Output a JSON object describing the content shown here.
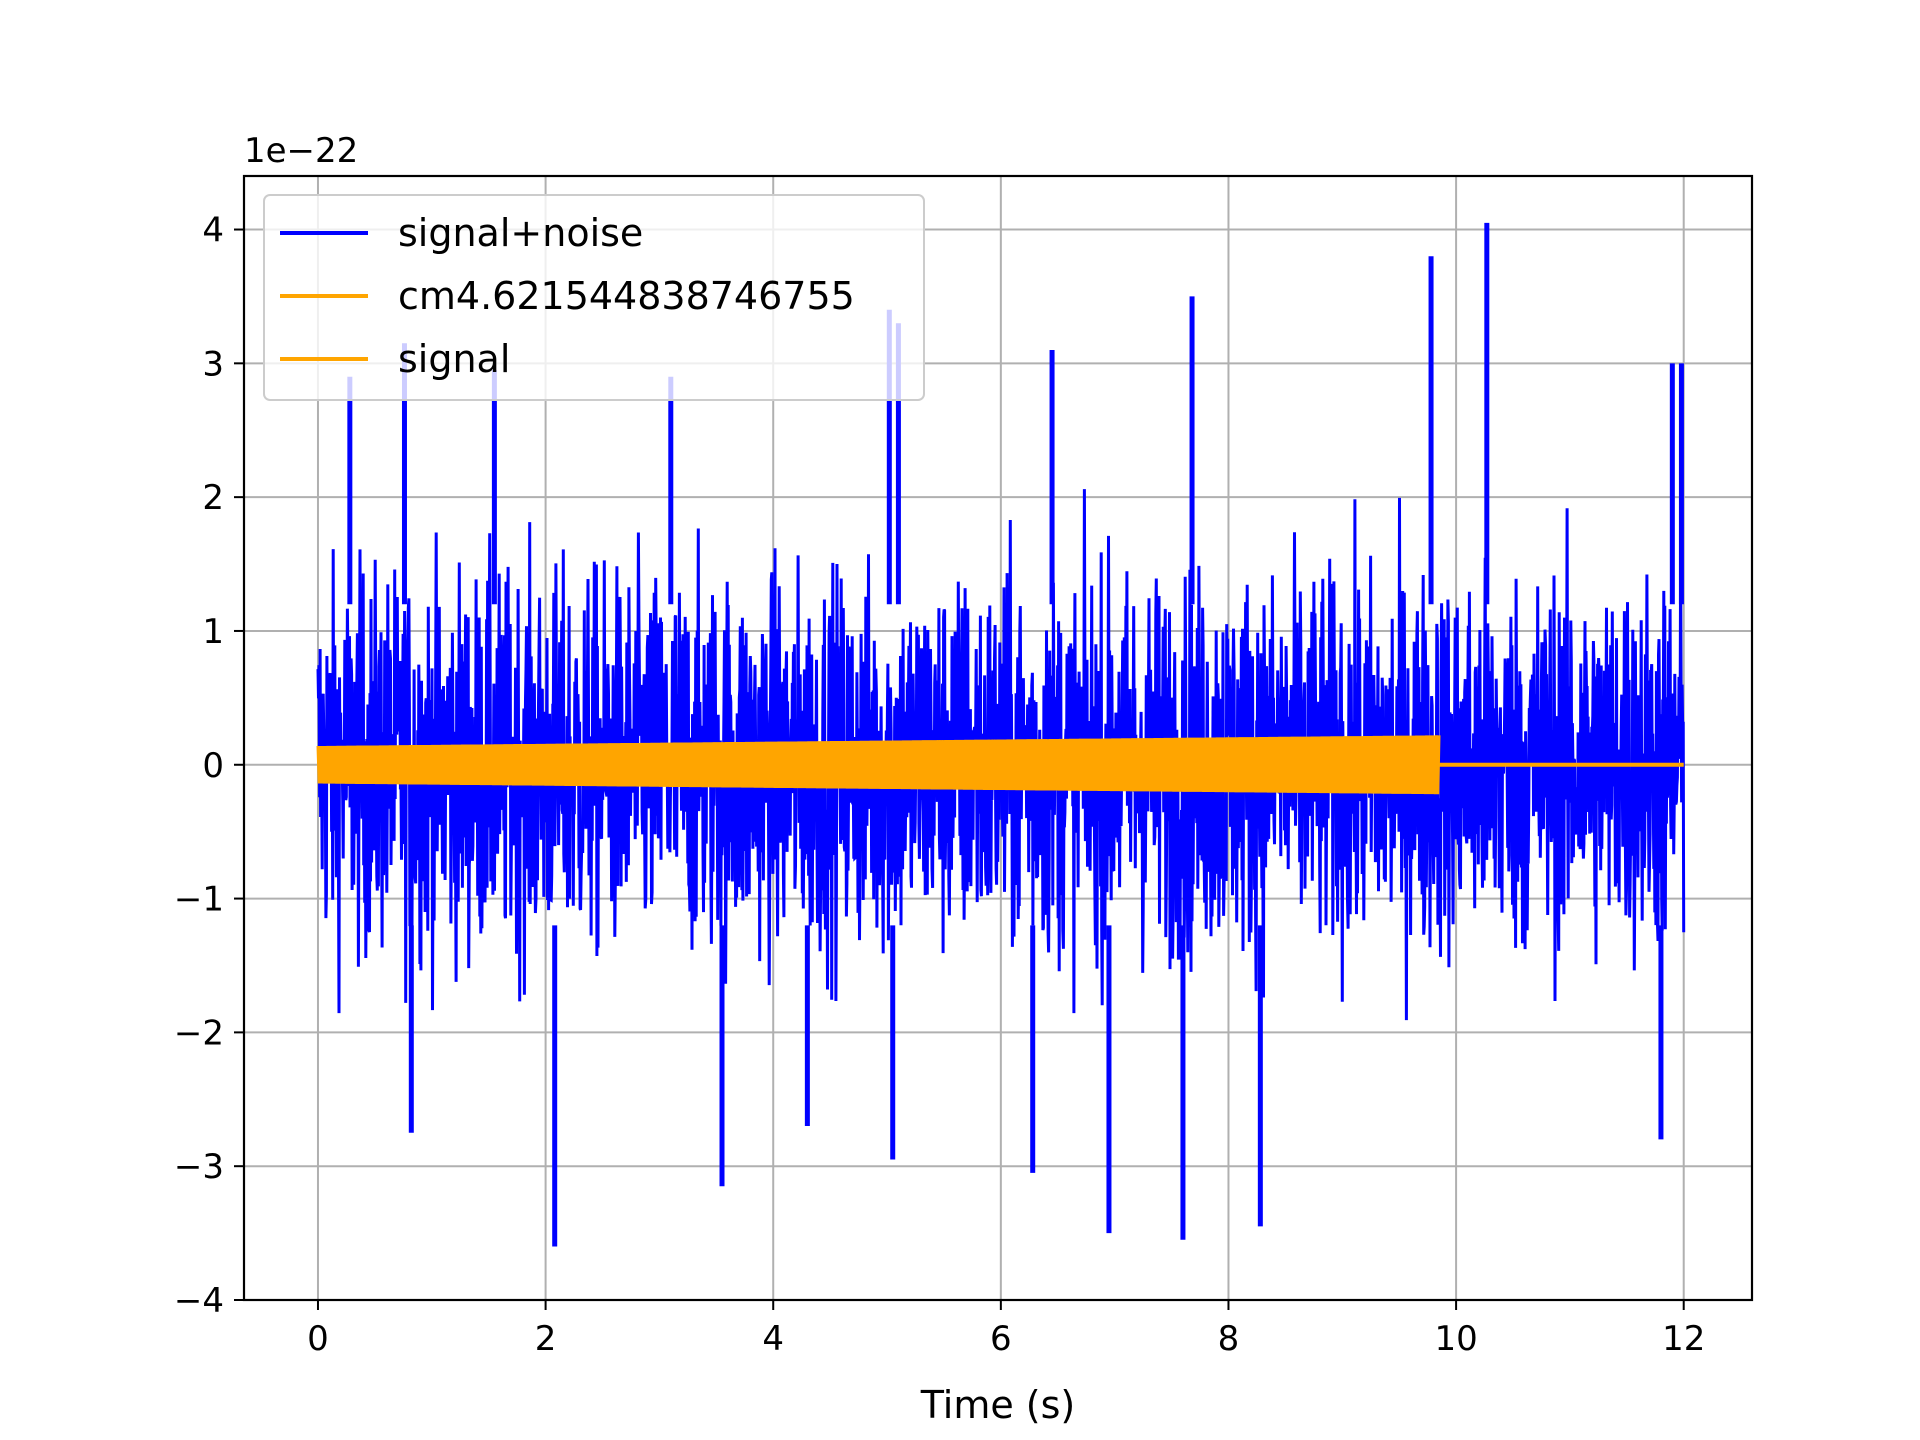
{
  "chart_data": {
    "type": "line",
    "xlabel": "Time (s)",
    "ylabel": "",
    "offset_text": "1e−22",
    "xlim": [
      -0.65,
      12.6
    ],
    "ylim": [
      -4.0,
      4.4
    ],
    "xticks": [
      0,
      2,
      4,
      6,
      8,
      10,
      12
    ],
    "xtick_labels": [
      "0",
      "2",
      "4",
      "6",
      "8",
      "10",
      "12"
    ],
    "yticks": [
      -4,
      -3,
      -2,
      -1,
      0,
      1,
      2,
      3,
      4
    ],
    "ytick_labels": [
      "−4",
      "−3",
      "−2",
      "−1",
      "0",
      "1",
      "2",
      "3",
      "4"
    ],
    "grid": true,
    "legend_position": "top-left",
    "series": [
      {
        "name": "signal+noise",
        "color": "#0000ff",
        "kind": "noise",
        "x_range": [
          0,
          12
        ],
        "band": 1.3,
        "peaks": [
          [
            0.28,
            2.9
          ],
          [
            0.76,
            3.15
          ],
          [
            1.55,
            2.95
          ],
          [
            3.1,
            2.9
          ],
          [
            5.02,
            3.4
          ],
          [
            5.1,
            3.3
          ],
          [
            6.45,
            3.1
          ],
          [
            7.68,
            3.5
          ],
          [
            9.78,
            3.8
          ],
          [
            10.27,
            4.05
          ],
          [
            11.9,
            3.0
          ],
          [
            11.98,
            3.0
          ],
          [
            0.82,
            -2.75
          ],
          [
            2.08,
            -3.6
          ],
          [
            3.55,
            -3.15
          ],
          [
            4.3,
            -2.7
          ],
          [
            5.05,
            -2.95
          ],
          [
            6.28,
            -3.05
          ],
          [
            6.95,
            -3.5
          ],
          [
            7.6,
            -3.55
          ],
          [
            8.28,
            -3.45
          ],
          [
            11.8,
            -2.8
          ]
        ]
      },
      {
        "name": "cm4.621544838746755",
        "color": "#ffa500",
        "kind": "chirp",
        "x_range": [
          0,
          9.85
        ],
        "amplitude_start": 0.14,
        "amplitude_end": 0.22
      },
      {
        "name": "signal",
        "color": "#ffa500",
        "kind": "flat",
        "x_range": [
          9.85,
          12
        ],
        "value": 0
      }
    ]
  }
}
